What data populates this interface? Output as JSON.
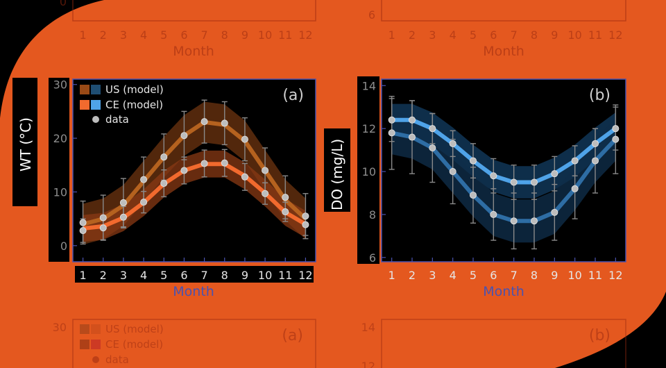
{
  "colors": {
    "background": "#000000",
    "blob": "#E4581F",
    "panel_bg": "#000000",
    "axis_frame": "#4a52b0",
    "us_model": "#B5621F",
    "ce_model": "#F26A2E",
    "us_model_do": "#2E6DA4",
    "ce_model_do": "#4FA3E8",
    "data_point": "#BDBDBD",
    "month_label": "#4a52b0"
  },
  "top_ghost": {
    "xlabel": "Month",
    "left_ytick": "0",
    "right_ytick": "6",
    "ticks": [
      "1",
      "2",
      "3",
      "4",
      "5",
      "6",
      "7",
      "8",
      "9",
      "10",
      "11",
      "12"
    ]
  },
  "bottom_ghost": {
    "left_tag": "(a)",
    "right_tag": "(b)",
    "left_yticks": [
      "30"
    ],
    "right_yticks": [
      "14",
      "12"
    ],
    "legend": [
      "US (model)",
      "CE (model)",
      "data"
    ]
  },
  "chart_data": [
    {
      "type": "line",
      "panel": "(a)",
      "xlabel": "Month",
      "ylabel": "WT (°C)",
      "x": [
        1,
        2,
        3,
        4,
        5,
        6,
        7,
        8,
        9,
        10,
        11,
        12
      ],
      "xticks": [
        "1",
        "2",
        "3",
        "4",
        "5",
        "6",
        "7",
        "8",
        "9",
        "10",
        "11",
        "12"
      ],
      "ylim": [
        -3,
        31
      ],
      "yticks": [
        0,
        10,
        20,
        30
      ],
      "legend_position": "top-left",
      "legend": [
        "US (model)",
        "CE (model)",
        "data"
      ],
      "series": [
        {
          "name": "US (model)",
          "values": [
            4.0,
            5.0,
            7.5,
            12.0,
            16.5,
            20.5,
            23.0,
            22.5,
            19.5,
            14.0,
            8.5,
            5.0
          ],
          "band_half_width": 3.8
        },
        {
          "name": "CE (model)",
          "values": [
            3.2,
            3.6,
            5.2,
            8.0,
            11.5,
            14.0,
            15.2,
            15.2,
            13.0,
            9.8,
            6.2,
            4.0
          ],
          "band_half_width": 2.5
        },
        {
          "name": "data",
          "points_us": [
            4.3,
            5.2,
            8.0,
            12.3,
            16.5,
            20.5,
            23.1,
            22.8,
            19.8,
            14.0,
            9.0,
            5.5
          ],
          "points_ce": [
            2.8,
            3.3,
            5.3,
            8.1,
            11.6,
            14.0,
            15.3,
            15.4,
            12.8,
            9.7,
            6.3,
            3.9
          ],
          "err_us": [
            4.0,
            4.2,
            4.5,
            4.2,
            4.3,
            4.5,
            4.0,
            4.0,
            4.0,
            4.2,
            4.0,
            4.2
          ],
          "err_ce": [
            2.2,
            2.2,
            2.0,
            2.0,
            2.5,
            2.5,
            2.5,
            2.5,
            2.5,
            2.0,
            1.8,
            2.0
          ]
        }
      ]
    },
    {
      "type": "line",
      "panel": "(b)",
      "xlabel": "Month",
      "ylabel": "DO (mg/L)",
      "x": [
        1,
        2,
        3,
        4,
        5,
        6,
        7,
        8,
        9,
        10,
        11,
        12
      ],
      "xticks": [
        "1",
        "2",
        "3",
        "4",
        "5",
        "6",
        "7",
        "8",
        "9",
        "10",
        "11",
        "12"
      ],
      "ylim": [
        5.8,
        14.3
      ],
      "yticks": [
        6,
        8,
        10,
        12,
        14
      ],
      "series": [
        {
          "name": "CE (model)",
          "values": [
            12.4,
            12.4,
            12.0,
            11.3,
            10.5,
            9.8,
            9.5,
            9.5,
            9.9,
            10.5,
            11.3,
            12.0
          ],
          "band_half_width": 0.75
        },
        {
          "name": "US (model)",
          "values": [
            11.8,
            11.6,
            11.1,
            10.0,
            8.9,
            8.0,
            7.7,
            7.7,
            8.1,
            9.2,
            10.5,
            11.5
          ],
          "band_half_width": 1.0
        },
        {
          "name": "data",
          "points_ce": [
            12.4,
            12.4,
            12.0,
            11.3,
            10.5,
            9.8,
            9.5,
            9.5,
            9.9,
            10.5,
            11.3,
            12.0
          ],
          "points_us": [
            11.8,
            11.6,
            11.1,
            10.0,
            8.9,
            8.0,
            7.7,
            7.7,
            8.1,
            9.2,
            10.5,
            11.5
          ],
          "err_ce": [
            1.0,
            0.9,
            0.7,
            0.6,
            0.8,
            0.8,
            0.8,
            0.8,
            0.8,
            0.7,
            0.7,
            1.0
          ],
          "err_us": [
            1.7,
            1.7,
            1.6,
            1.5,
            1.3,
            1.2,
            1.3,
            1.3,
            1.3,
            1.4,
            1.5,
            1.6
          ]
        }
      ]
    }
  ]
}
